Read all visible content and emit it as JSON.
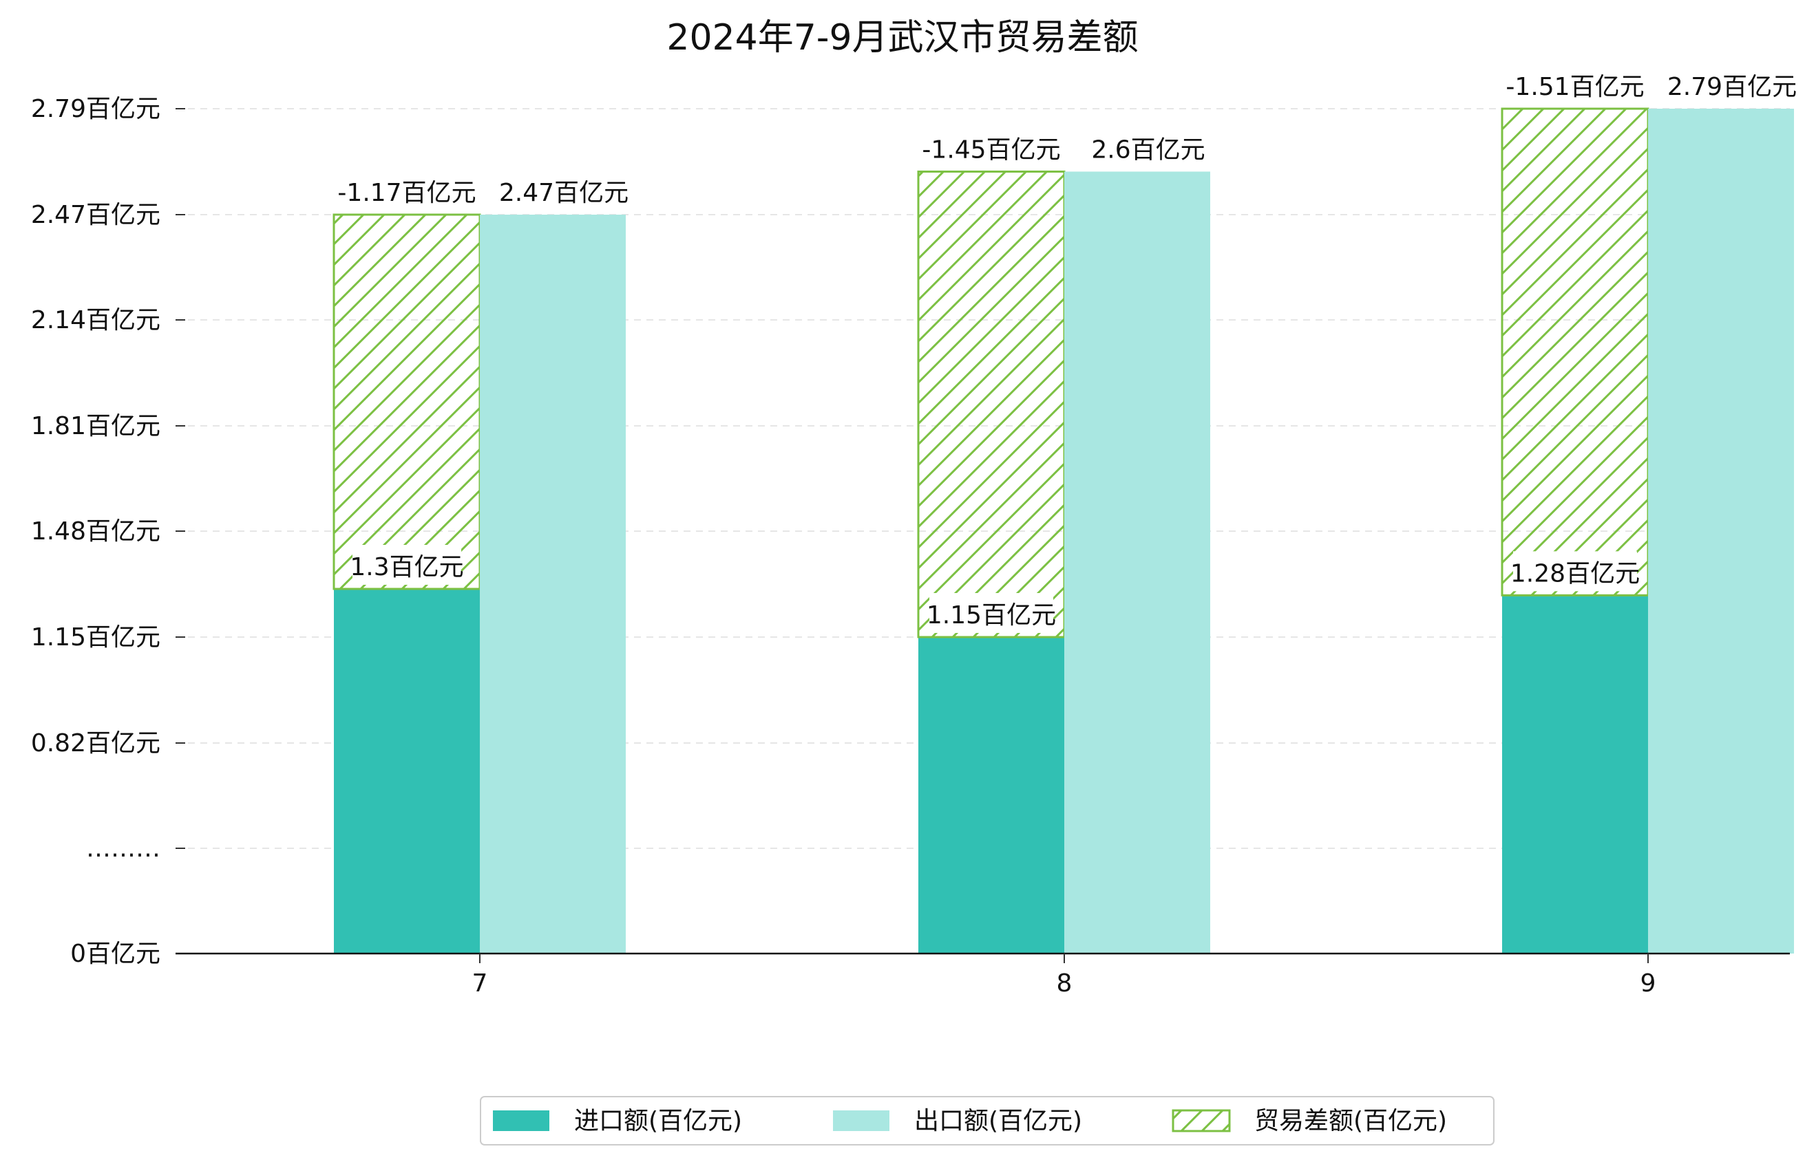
{
  "chart_data": {
    "type": "bar",
    "title": "2024年7-9月武汉市贸易差额",
    "categories": [
      "7",
      "8",
      "9"
    ],
    "series": [
      {
        "name": "进口额(百亿元)",
        "values": [
          1.3,
          1.15,
          1.28
        ],
        "labels": [
          "1.3百亿元",
          "1.15百亿元",
          "1.28百亿元"
        ],
        "color": "#31c0b3"
      },
      {
        "name": "出口额(百亿元)",
        "values": [
          2.47,
          2.6,
          2.79
        ],
        "labels": [
          "2.47百亿元",
          "2.6百亿元",
          "2.79百亿元"
        ],
        "color": "#a9e7e1"
      },
      {
        "name": "贸易差额(百亿元)",
        "values": [
          -1.17,
          -1.45,
          -1.51
        ],
        "labels": [
          "-1.17百亿元",
          "-1.45百亿元",
          "-1.51百亿元"
        ],
        "color": "#7cc043",
        "hatch": true
      }
    ],
    "y_ticks": [
      "0百亿元",
      "………",
      "0.82百亿元",
      "1.15百亿元",
      "1.48百亿元",
      "1.81百亿元",
      "2.14百亿元",
      "2.47百亿元",
      "2.79百亿元"
    ],
    "y_tick_values": [
      0,
      0.49,
      0.82,
      1.15,
      1.48,
      1.81,
      2.14,
      2.47,
      2.79
    ],
    "ylim": [
      0,
      2.79
    ],
    "grid": "horizontal dashed",
    "legend_position": "bottom-center",
    "note": "y axis is broken between 0 and 0.82; the 贸易差额 bar is drawn stacked on top of the 进口额 bar with height |value|"
  }
}
